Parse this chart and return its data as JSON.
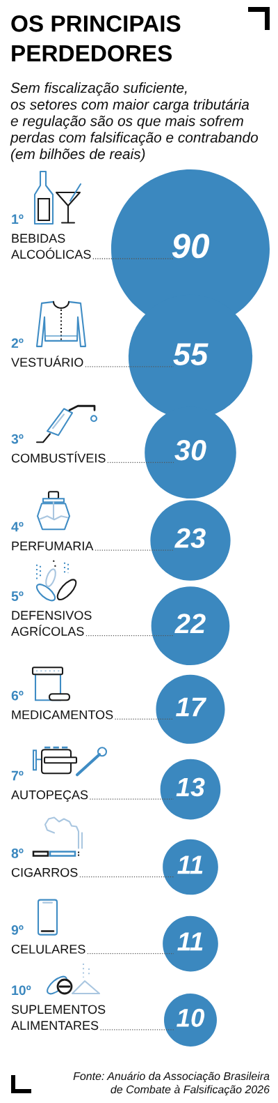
{
  "chart_data": {
    "type": "other",
    "title": "OS PRINCIPAIS\nPERDEDORES",
    "subtitle": "Sem fiscalização suficiente,\nos setores com maior carga tributária\ne regulação são os que mais sofrem\nperdas com falsificação e contrabando\n(em bilhões de reais)",
    "categories": [
      "1º\nBEBIDAS\nALCOÓLICAS",
      "2º\nVESTUÁRIO",
      "3º\nCOMBUSTÍVEIS",
      "4º\nPERFUMARIA",
      "5º\nDEFENSIVOS\nAGRÍCOLAS",
      "6º\nMEDICAMENTOS",
      "7º\nAUTOPEÇAS",
      "8º\nCIGARROS",
      "9º\nCELULARES",
      "10º\nSUPLEMENTOS\nALIMENTARES"
    ],
    "values": [
      90,
      55,
      30,
      23,
      22,
      17,
      13,
      11,
      11,
      10
    ],
    "color": "#3b88bf",
    "data_labels": true,
    "annotations": [
      "Fonte: Anuário da Associação Brasileira\nde Combate à Falsificação 2026"
    ]
  }
}
